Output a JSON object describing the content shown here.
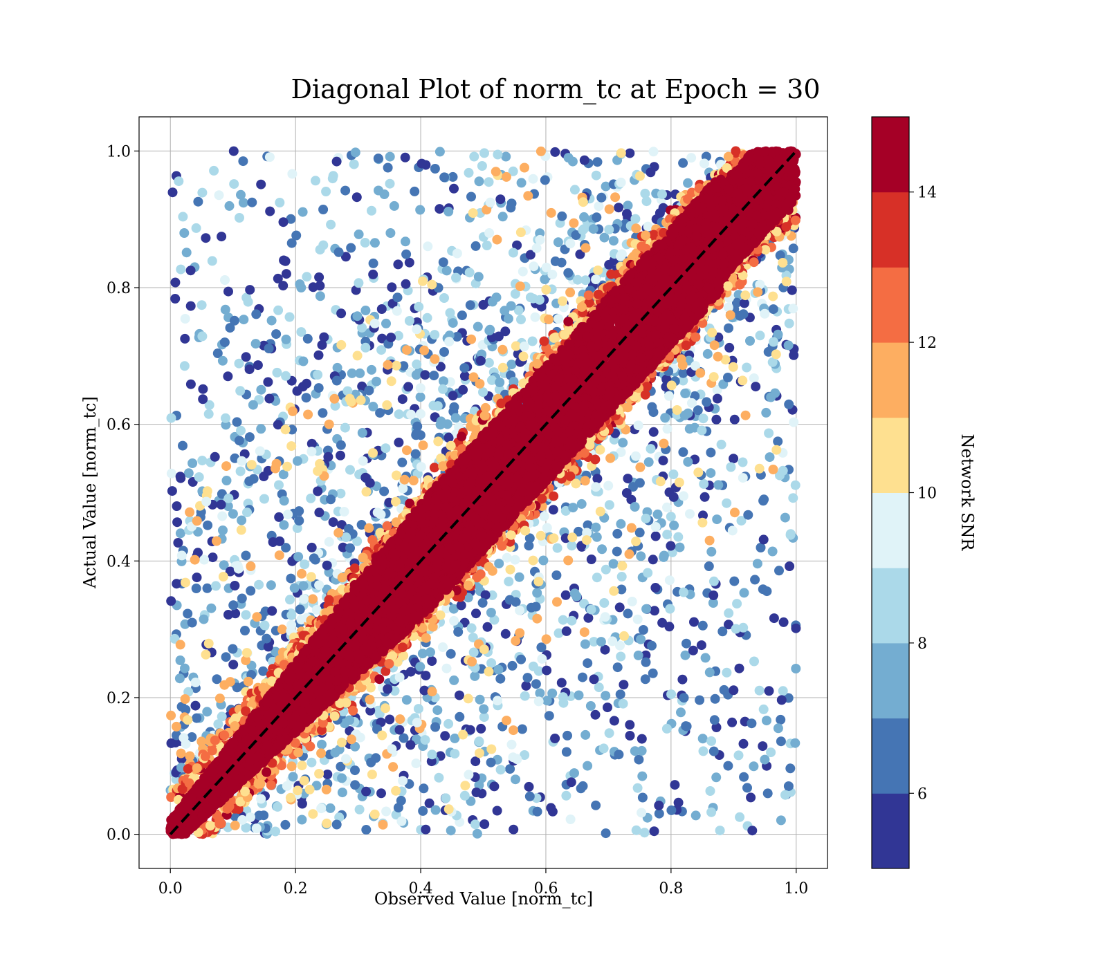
{
  "chart_data": {
    "type": "scatter",
    "title": "Diagonal Plot of norm_tc at Epoch = 30",
    "xlabel": "Observed Value [norm_tc]",
    "ylabel": "Actual Value [norm_tc]",
    "xlim": [
      -0.05,
      1.05
    ],
    "ylim": [
      -0.05,
      1.05
    ],
    "x_ticks": [
      "0.0",
      "0.2",
      "0.4",
      "0.6",
      "0.8",
      "1.0"
    ],
    "y_ticks": [
      "0.0",
      "0.2",
      "0.4",
      "0.6",
      "0.8",
      "1.0"
    ],
    "x_tick_values": [
      0.0,
      0.2,
      0.4,
      0.6,
      0.8,
      1.0
    ],
    "y_tick_values": [
      0.0,
      0.2,
      0.4,
      0.6,
      0.8,
      1.0
    ],
    "grid": true,
    "reference_line": {
      "from": [
        0,
        0
      ],
      "to": [
        1,
        1
      ],
      "style": "dashed",
      "color": "#000000"
    },
    "colorbar": {
      "label": "Network SNR",
      "range": [
        5,
        15
      ],
      "tick_values": [
        6,
        8,
        10,
        12,
        14
      ],
      "tick_labels": [
        "6",
        "8",
        "10",
        "12",
        "14"
      ],
      "colors": [
        "#313695",
        "#4575b4",
        "#74add1",
        "#abd9e9",
        "#e0f3f8",
        "#fee090",
        "#fdae61",
        "#f46d43",
        "#d73027",
        "#a50026"
      ]
    },
    "point_summary": {
      "x_range": [
        0,
        1
      ],
      "y_range": [
        0,
        1
      ],
      "concentration": "dense band along y = x with SNR ≥ 14; scatter with low SNR (5–9) spreads away from the diagonal"
    }
  }
}
